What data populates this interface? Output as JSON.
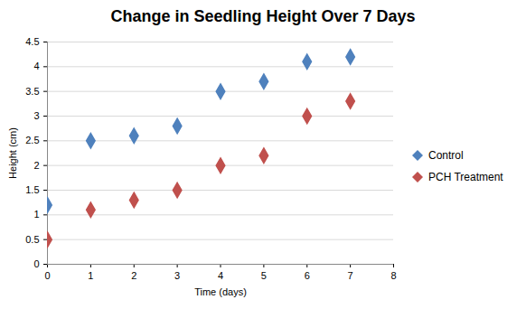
{
  "chart_data": {
    "type": "scatter",
    "title": "Change in Seedling Height Over 7 Days",
    "x_label": "Time (days)",
    "y_label": "Height (cm)",
    "x": [
      0,
      1,
      2,
      3,
      4,
      5,
      6,
      7
    ],
    "series": [
      {
        "name": "Control",
        "color": "#4f81bd",
        "marker": "diamond",
        "values": [
          1.2,
          2.5,
          2.6,
          2.8,
          3.5,
          3.7,
          4.1,
          4.2
        ]
      },
      {
        "name": "PCH Treatment",
        "color": "#c0504d",
        "marker": "diamond",
        "values": [
          0.5,
          1.1,
          1.3,
          1.5,
          2.0,
          2.2,
          3.0,
          3.3
        ]
      }
    ],
    "xlim": [
      0,
      8
    ],
    "xticks": [
      0,
      1,
      2,
      3,
      4,
      5,
      6,
      7,
      8
    ],
    "ylim": [
      0,
      4.5
    ],
    "yticks": [
      0,
      0.5,
      1,
      1.5,
      2,
      2.5,
      3,
      3.5,
      4,
      4.5
    ],
    "grid": true,
    "legend": "right"
  }
}
